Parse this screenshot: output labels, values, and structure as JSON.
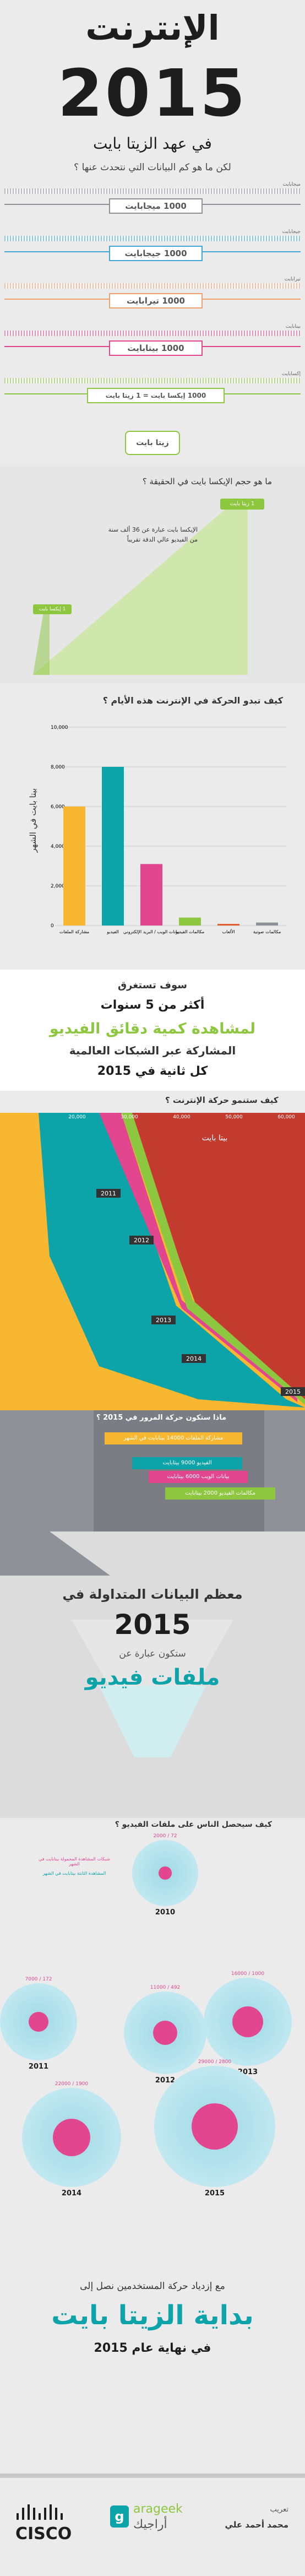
{
  "header": {
    "title_ar": "الإنترنت",
    "year": "2015",
    "subtitle": "في عهد الزيتا بايت",
    "question": "لكن ما هو كم البيانات التي نتحدث عنها ؟"
  },
  "units": [
    {
      "label": "ميجابايت",
      "value": "1000 ميجابايت",
      "color": "#8e9298"
    },
    {
      "label": "جيجابايت",
      "value": "1000 جيجابايت",
      "color": "#3fa7d6"
    },
    {
      "label": "تيرابايت",
      "value": "1000 تيرابايت",
      "color": "#f0a070"
    },
    {
      "label": "بيتابايت",
      "value": "1000 بيتابايت",
      "color": "#e2468e"
    },
    {
      "label": "إكسابايت",
      "value": "1000 إيكسا بايت = 1 زيتا بايت",
      "color": "#8dc63f"
    }
  ],
  "zetta_label": "زيتا بايت",
  "exabyte_section": {
    "question": "ما هو حجم الإيكسا بايت في الحقيقة ؟",
    "big_badge": "1 زيتا بايت",
    "desc_line1": "الإيكسا بايت عبارة عن 36 ألف سنة",
    "desc_line2": "من الفيديو عالي الدقة تقريباً",
    "small_badge": "1 إيكسا بايت"
  },
  "traffic_chart": {
    "title": "كيف تبدو الحركة في الإنترنت هذه الأيام ؟",
    "ylabel": "بيتا بايت في الشهر"
  },
  "chart_data": [
    {
      "type": "bar",
      "title": "كيف تبدو الحركة في الإنترنت هذه الأيام ؟",
      "ylabel": "بيتا بايت في الشهر",
      "ylim": [
        0,
        10000
      ],
      "yticks": [
        "10,000",
        "8,000",
        "6,000",
        "4,000",
        "2,000",
        "0"
      ],
      "categories": [
        "مشاركة الملفات",
        "الفيديو",
        "بيانات الويب / البريد الإلكتروني",
        "مكالمات الفيديو",
        "الألعاب",
        "مكالمات صوتية"
      ],
      "values": [
        6000,
        8000,
        3100,
        400,
        80,
        150
      ],
      "colors": [
        "#f7b731",
        "#0ca3a9",
        "#e2468e",
        "#8dc63f",
        "#e05a2a",
        "#8e9298"
      ]
    },
    {
      "type": "area",
      "title": "كيف ستنمو حركة الإنترنت ؟",
      "xticks": [
        "60,000",
        "50,000",
        "40,000",
        "30,000",
        "20,000"
      ],
      "xlabel": "بيتا بايت",
      "years": [
        "2011",
        "2012",
        "2013",
        "2014",
        "2015"
      ]
    },
    {
      "type": "scatter",
      "title": "كيف سيحصل الناس على ملفات الفيديو ؟",
      "points": [
        {
          "year": "2010",
          "a": 2000,
          "b": 72
        },
        {
          "year": "2011",
          "a": 7000,
          "b": 172
        },
        {
          "year": "2012",
          "a": 11000,
          "b": 492
        },
        {
          "year": "2013",
          "a": 16000,
          "b": 1000
        },
        {
          "year": "2014",
          "a": 22000,
          "b": 1900
        },
        {
          "year": "2015",
          "a": 29000,
          "b": 2800
        }
      ]
    }
  ],
  "video_stat": {
    "line1": "سوف تستغرق",
    "line2": "أكثر من 5 سنوات",
    "line3": "لمشاهدة كمية دقائق الفيديو",
    "line4": "المشاركة عبر الشبكات العالمية",
    "line5": "كل ثانية في 2015"
  },
  "growth": {
    "title": "كيف ستنمو حركة الإنترنت ؟",
    "unit": "بيتا بايت",
    "xticks": [
      "60,000",
      "50,000",
      "40,000",
      "30,000",
      "20,000"
    ],
    "years": [
      "2011",
      "2012",
      "2013",
      "2014",
      "2015"
    ]
  },
  "traffic_2015": {
    "title": "ماذا ستكون حركة المرور في 2015 ؟",
    "rows": [
      {
        "text": "مشاركة الملفات 14000 بيتابايت في الشهر",
        "color": "#f7b731"
      },
      {
        "text": "الفيديو 9000 بيتابايت",
        "color": "#0ca3a9"
      },
      {
        "text": "بيانات الويب 6000 بيتابايت",
        "color": "#e2468e"
      },
      {
        "text": "مكالمات الفيديو 2000 بيتابايت",
        "color": "#8dc63f"
      }
    ]
  },
  "data_2015": {
    "line1": "معظم البيانات المتداولة في",
    "year": "2015",
    "line2": "ستكون عبارة عن",
    "line3": "ملفات فيديو"
  },
  "video_access": {
    "title": "كيف سيحصل الناس على ملفات الفيديو ؟",
    "legend1": "شبكات المشاهدة المحمولة بيتابايت في الشهر",
    "legend2": "المشاهدة الثابتة بيتابايت في الشهر",
    "circles": [
      {
        "year": "2010",
        "label": "2000 / 72"
      },
      {
        "year": "2011",
        "label": "7000 / 172"
      },
      {
        "year": "2012",
        "label": "11000 / 492"
      },
      {
        "year": "2013",
        "label": "16000 / 1000"
      },
      {
        "year": "2014",
        "label": "22000 / 1900"
      },
      {
        "year": "2015",
        "label": "29000 / 2800"
      }
    ]
  },
  "closing": {
    "line1": "مع إزدياد حركة المستخدمين نصل إلى",
    "line2": "بداية الزيتا بايت",
    "line3": "في نهاية عام 2015"
  },
  "footer": {
    "cisco": "CISCO",
    "arageek_en": "arageek",
    "arageek_ar": "أراجيك",
    "translator_label": "تعريب",
    "translator": "محمد أحمد علي"
  },
  "colors": {
    "teal": "#0ca3a9",
    "pink": "#e2468e",
    "green": "#8dc63f",
    "orange": "#f7b731",
    "dark": "#1f1f1f"
  }
}
